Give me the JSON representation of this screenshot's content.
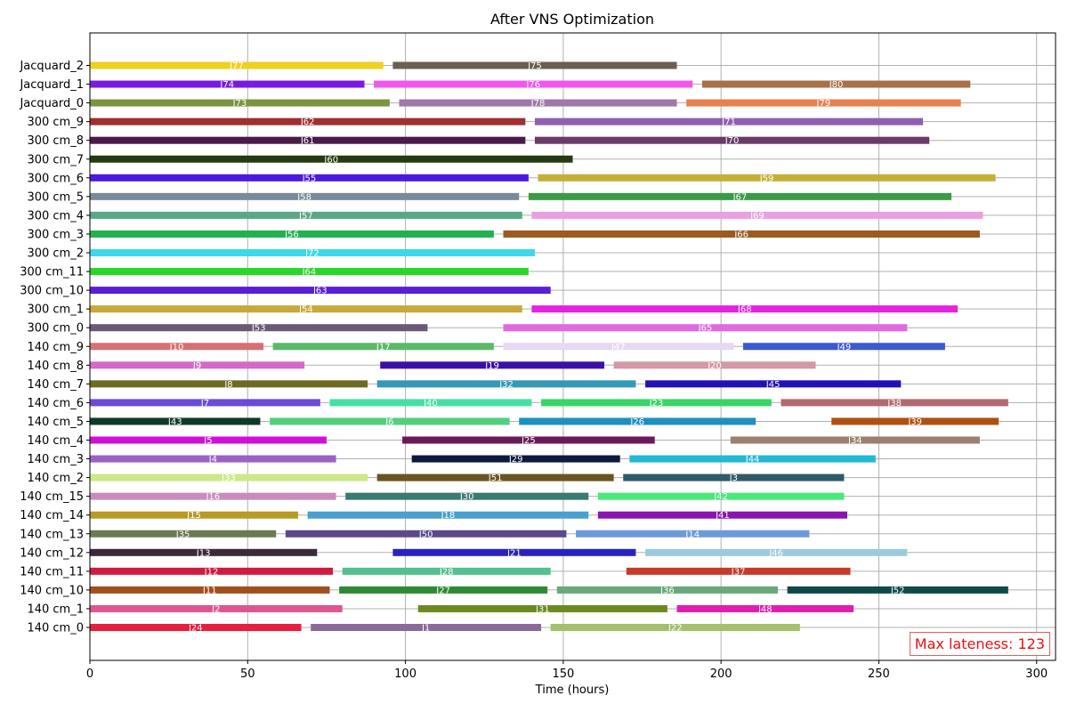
{
  "chart_data": {
    "type": "gantt",
    "title": "After VNS Optimization",
    "xlabel": "Time (hours)",
    "xlim": [
      0,
      306
    ],
    "xticks": [
      0,
      50,
      100,
      150,
      200,
      250,
      300
    ],
    "grid": true,
    "annotation": "Max lateness: 123",
    "resources": [
      "140 cm_0",
      "140 cm_1",
      "140 cm_10",
      "140 cm_11",
      "140 cm_12",
      "140 cm_13",
      "140 cm_14",
      "140 cm_15",
      "140 cm_2",
      "140 cm_3",
      "140 cm_4",
      "140 cm_5",
      "140 cm_6",
      "140 cm_7",
      "140 cm_8",
      "140 cm_9",
      "300 cm_0",
      "300 cm_1",
      "300 cm_10",
      "300 cm_11",
      "300 cm_2",
      "300 cm_3",
      "300 cm_4",
      "300 cm_5",
      "300 cm_6",
      "300 cm_7",
      "300 cm_8",
      "300 cm_9",
      "Jacquard_0",
      "Jacquard_1",
      "Jacquard_2"
    ],
    "tasks": [
      {
        "resource": "140 cm_0",
        "label": "J24",
        "start": 0,
        "end": 67,
        "color": "#e8203e"
      },
      {
        "resource": "140 cm_0",
        "label": "J1",
        "start": 70,
        "end": 143,
        "color": "#8a6a98"
      },
      {
        "resource": "140 cm_0",
        "label": "J22",
        "start": 146,
        "end": 225,
        "color": "#a3c06a"
      },
      {
        "resource": "140 cm_1",
        "label": "J2",
        "start": 0,
        "end": 80,
        "color": "#e0558e"
      },
      {
        "resource": "140 cm_1",
        "label": "J31",
        "start": 104,
        "end": 183,
        "color": "#6b8a20"
      },
      {
        "resource": "140 cm_1",
        "label": "J48",
        "start": 186,
        "end": 242,
        "color": "#e21cb0"
      },
      {
        "resource": "140 cm_10",
        "label": "J11",
        "start": 0,
        "end": 76,
        "color": "#a0501e"
      },
      {
        "resource": "140 cm_10",
        "label": "J27",
        "start": 79,
        "end": 145,
        "color": "#2e8a32"
      },
      {
        "resource": "140 cm_10",
        "label": "J36",
        "start": 148,
        "end": 218,
        "color": "#6aa87a"
      },
      {
        "resource": "140 cm_10",
        "label": "J52",
        "start": 221,
        "end": 291,
        "color": "#0e4a48"
      },
      {
        "resource": "140 cm_11",
        "label": "J12",
        "start": 0,
        "end": 77,
        "color": "#d01c3e"
      },
      {
        "resource": "140 cm_11",
        "label": "J28",
        "start": 80,
        "end": 146,
        "color": "#52c090"
      },
      {
        "resource": "140 cm_11",
        "label": "J37",
        "start": 170,
        "end": 241,
        "color": "#c83a28"
      },
      {
        "resource": "140 cm_12",
        "label": "J13",
        "start": 0,
        "end": 72,
        "color": "#3a2a3a"
      },
      {
        "resource": "140 cm_12",
        "label": "J21",
        "start": 96,
        "end": 173,
        "color": "#2a22c0"
      },
      {
        "resource": "140 cm_12",
        "label": "J46",
        "start": 176,
        "end": 259,
        "color": "#9ecae0"
      },
      {
        "resource": "140 cm_13",
        "label": "J35",
        "start": 0,
        "end": 59,
        "color": "#6a7a52"
      },
      {
        "resource": "140 cm_13",
        "label": "J50",
        "start": 62,
        "end": 151,
        "color": "#5a4a8a"
      },
      {
        "resource": "140 cm_13",
        "label": "J14",
        "start": 154,
        "end": 228,
        "color": "#6f9ad8"
      },
      {
        "resource": "140 cm_14",
        "label": "J15",
        "start": 0,
        "end": 66,
        "color": "#b89a24"
      },
      {
        "resource": "140 cm_14",
        "label": "J18",
        "start": 69,
        "end": 158,
        "color": "#47a0d0"
      },
      {
        "resource": "140 cm_14",
        "label": "J41",
        "start": 161,
        "end": 240,
        "color": "#8a14b0"
      },
      {
        "resource": "140 cm_15",
        "label": "J16",
        "start": 0,
        "end": 78,
        "color": "#c88cbc"
      },
      {
        "resource": "140 cm_15",
        "label": "J30",
        "start": 81,
        "end": 158,
        "color": "#3a7a70"
      },
      {
        "resource": "140 cm_15",
        "label": "J42",
        "start": 161,
        "end": 239,
        "color": "#4ae87a"
      },
      {
        "resource": "140 cm_2",
        "label": "J33",
        "start": 0,
        "end": 88,
        "color": "#cce888"
      },
      {
        "resource": "140 cm_2",
        "label": "J51",
        "start": 91,
        "end": 166,
        "color": "#6a5420"
      },
      {
        "resource": "140 cm_2",
        "label": "J3",
        "start": 169,
        "end": 239,
        "color": "#2e5a6a"
      },
      {
        "resource": "140 cm_3",
        "label": "J4",
        "start": 0,
        "end": 78,
        "color": "#9a62c8"
      },
      {
        "resource": "140 cm_3",
        "label": "J29",
        "start": 102,
        "end": 168,
        "color": "#0c1a3e"
      },
      {
        "resource": "140 cm_3",
        "label": "J44",
        "start": 171,
        "end": 249,
        "color": "#22b8d8"
      },
      {
        "resource": "140 cm_4",
        "label": "J5",
        "start": 0,
        "end": 75,
        "color": "#d010d8"
      },
      {
        "resource": "140 cm_4",
        "label": "J25",
        "start": 99,
        "end": 179,
        "color": "#6a1a5a"
      },
      {
        "resource": "140 cm_4",
        "label": "J34",
        "start": 203,
        "end": 282,
        "color": "#9a8070"
      },
      {
        "resource": "140 cm_5",
        "label": "J43",
        "start": 0,
        "end": 54,
        "color": "#103a28"
      },
      {
        "resource": "140 cm_5",
        "label": "J6",
        "start": 57,
        "end": 133,
        "color": "#52d080"
      },
      {
        "resource": "140 cm_5",
        "label": "J26",
        "start": 136,
        "end": 211,
        "color": "#1e90c0"
      },
      {
        "resource": "140 cm_5",
        "label": "J39",
        "start": 235,
        "end": 288,
        "color": "#b05010"
      },
      {
        "resource": "140 cm_6",
        "label": "J7",
        "start": 0,
        "end": 73,
        "color": "#6a4ad8"
      },
      {
        "resource": "140 cm_6",
        "label": "J40",
        "start": 76,
        "end": 140,
        "color": "#44e0a8"
      },
      {
        "resource": "140 cm_6",
        "label": "J23",
        "start": 143,
        "end": 216,
        "color": "#3ad468"
      },
      {
        "resource": "140 cm_6",
        "label": "J38",
        "start": 219,
        "end": 291,
        "color": "#b06a70"
      },
      {
        "resource": "140 cm_7",
        "label": "J8",
        "start": 0,
        "end": 88,
        "color": "#6e6a22"
      },
      {
        "resource": "140 cm_7",
        "label": "J32",
        "start": 91,
        "end": 173,
        "color": "#3498b8"
      },
      {
        "resource": "140 cm_7",
        "label": "J45",
        "start": 176,
        "end": 257,
        "color": "#2210b8"
      },
      {
        "resource": "140 cm_8",
        "label": "J9",
        "start": 0,
        "end": 68,
        "color": "#d868c8"
      },
      {
        "resource": "140 cm_8",
        "label": "J19",
        "start": 92,
        "end": 163,
        "color": "#3a10a8"
      },
      {
        "resource": "140 cm_8",
        "label": "J20",
        "start": 166,
        "end": 230,
        "color": "#d498a8"
      },
      {
        "resource": "140 cm_9",
        "label": "J10",
        "start": 0,
        "end": 55,
        "color": "#d87070"
      },
      {
        "resource": "140 cm_9",
        "label": "J17",
        "start": 58,
        "end": 128,
        "color": "#5aba6a"
      },
      {
        "resource": "140 cm_9",
        "label": "J47",
        "start": 131,
        "end": 204,
        "color": "#e8d8f0"
      },
      {
        "resource": "140 cm_9",
        "label": "J49",
        "start": 207,
        "end": 271,
        "color": "#3a5ad0"
      },
      {
        "resource": "300 cm_0",
        "label": "J53",
        "start": 0,
        "end": 107,
        "color": "#6a5a78"
      },
      {
        "resource": "300 cm_0",
        "label": "J65",
        "start": 131,
        "end": 259,
        "color": "#e06ae0"
      },
      {
        "resource": "300 cm_1",
        "label": "J54",
        "start": 0,
        "end": 137,
        "color": "#c8a838"
      },
      {
        "resource": "300 cm_1",
        "label": "J68",
        "start": 140,
        "end": 275,
        "color": "#e422e0"
      },
      {
        "resource": "300 cm_10",
        "label": "J63",
        "start": 0,
        "end": 146,
        "color": "#5a1ed8"
      },
      {
        "resource": "300 cm_11",
        "label": "J64",
        "start": 0,
        "end": 139,
        "color": "#28d828"
      },
      {
        "resource": "300 cm_2",
        "label": "J72",
        "start": 0,
        "end": 141,
        "color": "#3cd8ec"
      },
      {
        "resource": "300 cm_3",
        "label": "J56",
        "start": 0,
        "end": 128,
        "color": "#22b050"
      },
      {
        "resource": "300 cm_3",
        "label": "J66",
        "start": 131,
        "end": 282,
        "color": "#9a5a20"
      },
      {
        "resource": "300 cm_4",
        "label": "J57",
        "start": 0,
        "end": 137,
        "color": "#58a888"
      },
      {
        "resource": "300 cm_4",
        "label": "J69",
        "start": 140,
        "end": 283,
        "color": "#eaa0e0"
      },
      {
        "resource": "300 cm_5",
        "label": "J58",
        "start": 0,
        "end": 136,
        "color": "#7a8a98"
      },
      {
        "resource": "300 cm_5",
        "label": "J67",
        "start": 139,
        "end": 273,
        "color": "#3a9a48"
      },
      {
        "resource": "300 cm_6",
        "label": "J55",
        "start": 0,
        "end": 139,
        "color": "#4a1ae0"
      },
      {
        "resource": "300 cm_6",
        "label": "J59",
        "start": 142,
        "end": 287,
        "color": "#c4b038"
      },
      {
        "resource": "300 cm_7",
        "label": "J60",
        "start": 0,
        "end": 153,
        "color": "#243a10"
      },
      {
        "resource": "300 cm_8",
        "label": "J61",
        "start": 0,
        "end": 138,
        "color": "#4a1a48"
      },
      {
        "resource": "300 cm_8",
        "label": "J70",
        "start": 141,
        "end": 266,
        "color": "#6a3a68"
      },
      {
        "resource": "300 cm_9",
        "label": "J62",
        "start": 0,
        "end": 138,
        "color": "#a03030"
      },
      {
        "resource": "300 cm_9",
        "label": "J71",
        "start": 141,
        "end": 264,
        "color": "#9060b0"
      },
      {
        "resource": "Jacquard_0",
        "label": "J73",
        "start": 0,
        "end": 95,
        "color": "#7a9440"
      },
      {
        "resource": "Jacquard_0",
        "label": "J78",
        "start": 98,
        "end": 186,
        "color": "#9e78a8"
      },
      {
        "resource": "Jacquard_0",
        "label": "J79",
        "start": 189,
        "end": 276,
        "color": "#e88050"
      },
      {
        "resource": "Jacquard_1",
        "label": "J74",
        "start": 0,
        "end": 87,
        "color": "#7a1ae0"
      },
      {
        "resource": "Jacquard_1",
        "label": "J76",
        "start": 90,
        "end": 191,
        "color": "#ee58ee"
      },
      {
        "resource": "Jacquard_1",
        "label": "J80",
        "start": 194,
        "end": 279,
        "color": "#a87048"
      },
      {
        "resource": "Jacquard_2",
        "label": "J77",
        "start": 0,
        "end": 93,
        "color": "#f0d020"
      },
      {
        "resource": "Jacquard_2",
        "label": "J75",
        "start": 96,
        "end": 186,
        "color": "#6a6050"
      }
    ]
  }
}
